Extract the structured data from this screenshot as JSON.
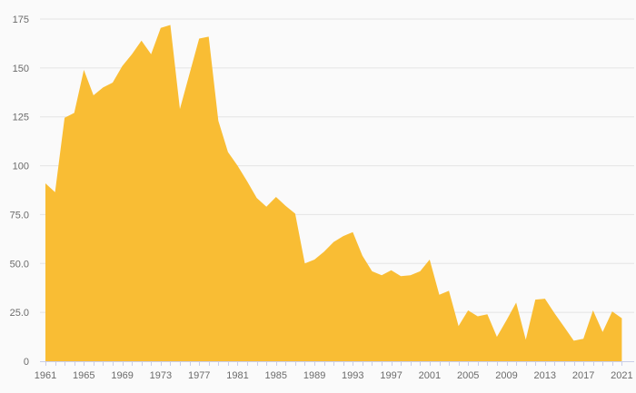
{
  "chart_data": {
    "type": "area",
    "title": "",
    "xlabel": "",
    "ylabel": "",
    "x": [
      1961,
      1962,
      1963,
      1964,
      1965,
      1966,
      1967,
      1968,
      1969,
      1970,
      1971,
      1972,
      1973,
      1974,
      1975,
      1976,
      1977,
      1978,
      1979,
      1980,
      1981,
      1982,
      1983,
      1984,
      1985,
      1986,
      1987,
      1988,
      1989,
      1990,
      1991,
      1992,
      1993,
      1994,
      1995,
      1996,
      1997,
      1998,
      1999,
      2000,
      2001,
      2002,
      2003,
      2004,
      2005,
      2006,
      2007,
      2008,
      2009,
      2010,
      2011,
      2012,
      2013,
      2014,
      2015,
      2016,
      2017,
      2018,
      2019,
      2020,
      2021
    ],
    "values": [
      91,
      86.5,
      124.5,
      127,
      149,
      136,
      140,
      142.5,
      151,
      157,
      164,
      157,
      170.5,
      172,
      129,
      147,
      165,
      166,
      123,
      107,
      100,
      92,
      83.5,
      79,
      84,
      79.5,
      75.5,
      50,
      52,
      56,
      61,
      64,
      66,
      54,
      46,
      44,
      46.5,
      43.5,
      44,
      46,
      52,
      34,
      36,
      18,
      26,
      23,
      24,
      12.5,
      21,
      30,
      11,
      31.5,
      32,
      24.5,
      17.5,
      10.5,
      11.5,
      26,
      15,
      25.5,
      22
    ],
    "ylim": [
      0,
      175
    ],
    "grid": "horizontal",
    "legend": "none",
    "y_ticks": [
      {
        "value": 175,
        "label": "175"
      },
      {
        "value": 150,
        "label": "150"
      },
      {
        "value": 125,
        "label": "125"
      },
      {
        "value": 100,
        "label": "100"
      },
      {
        "value": 75,
        "label": "75.0"
      },
      {
        "value": 50,
        "label": "50.0"
      },
      {
        "value": 25,
        "label": "25.0"
      },
      {
        "value": 0,
        "label": "0"
      }
    ],
    "x_tick_labels": [
      1961,
      1965,
      1969,
      1973,
      1977,
      1981,
      1985,
      1989,
      1993,
      1997,
      2001,
      2005,
      2009,
      2013,
      2017,
      2021
    ],
    "colors": {
      "fill": "#f9bd34",
      "background": "#fafafa",
      "gridline": "#e4e4e4",
      "axis": "#c9cee8",
      "label": "#6b6b6b"
    }
  }
}
